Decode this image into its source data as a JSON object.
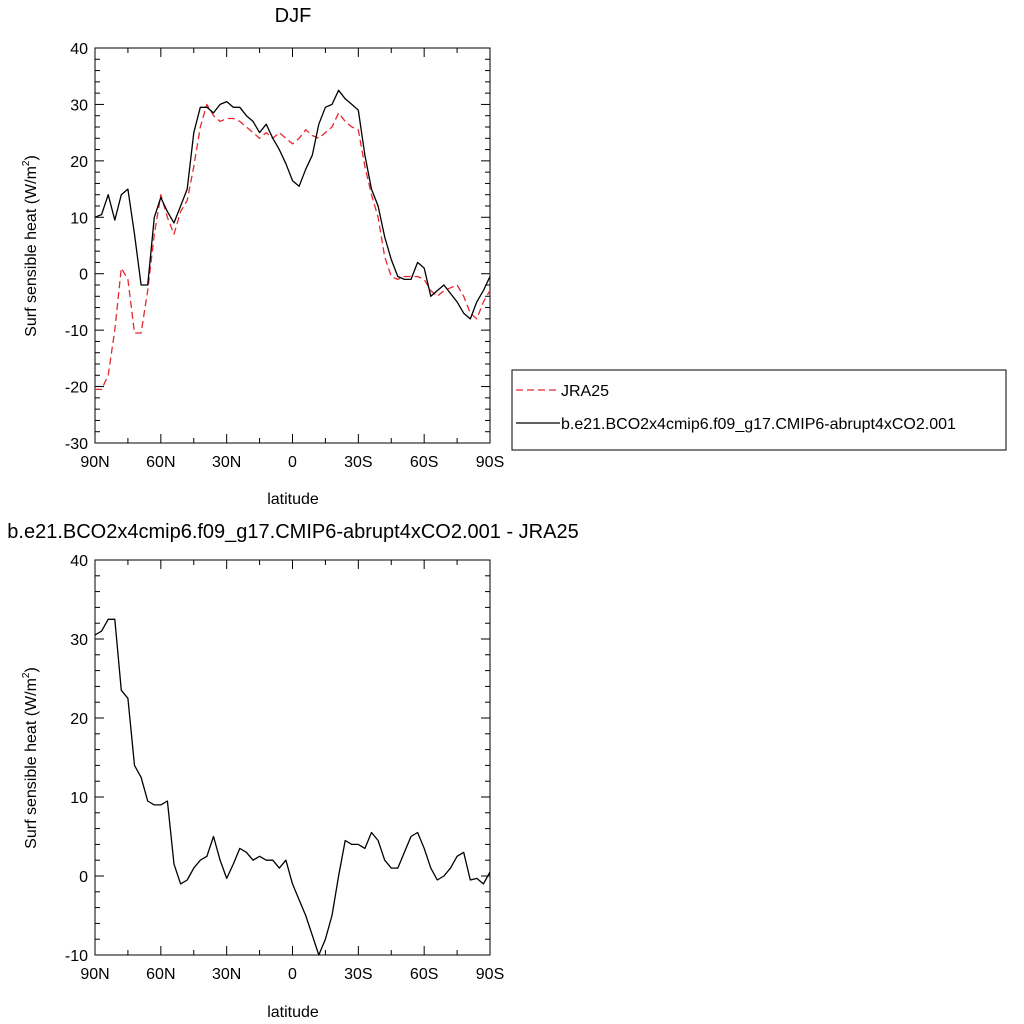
{
  "chart_data": [
    {
      "type": "line",
      "title": "DJF",
      "xlabel": "latitude",
      "ylabel_main": "Surf sensible heat (W/m",
      "ylabel_sup": "2",
      "ylabel_close": ")",
      "xlim": [
        90,
        -90
      ],
      "ylim": [
        -30,
        40
      ],
      "x_ticks": [
        90,
        60,
        30,
        0,
        -30,
        -60,
        -90
      ],
      "x_tick_labels": [
        "90N",
        "60N",
        "30N",
        "0",
        "30S",
        "60S",
        "90S"
      ],
      "y_ticks": [
        -30,
        -20,
        -10,
        0,
        10,
        20,
        30,
        40
      ],
      "y_tick_labels": [
        "-30",
        "-20",
        "-10",
        "0",
        "10",
        "20",
        "30",
        "40"
      ],
      "legend_position": "right",
      "series": [
        {
          "name": "JRA25",
          "color": "#e8262d",
          "style": "dashed",
          "x": [
            90,
            87,
            84,
            81,
            78,
            75,
            72,
            69,
            66,
            63,
            60,
            57,
            54,
            51,
            48,
            45,
            42,
            39,
            36,
            33,
            30,
            27,
            24,
            21,
            18,
            15,
            12,
            9,
            6,
            3,
            0,
            -3,
            -6,
            -9,
            -12,
            -15,
            -18,
            -21,
            -24,
            -27,
            -30,
            -33,
            -36,
            -39,
            -42,
            -45,
            -48,
            -51,
            -54,
            -57,
            -60,
            -63,
            -66,
            -69,
            -72,
            -75,
            -78,
            -81,
            -84,
            -87,
            -90
          ],
          "y": [
            -20.5,
            -20.5,
            -18,
            -10,
            1,
            -1,
            -10.5,
            -10.5,
            -3,
            7,
            14,
            10,
            7,
            11,
            13,
            19,
            26,
            30,
            28,
            27,
            27.5,
            27.5,
            27,
            26,
            25,
            24,
            25,
            24,
            25,
            24,
            23,
            24,
            25.5,
            24.5,
            24,
            25,
            26,
            28.5,
            27,
            26,
            25.5,
            19,
            14,
            10,
            3,
            -0.5,
            -1,
            -0.5,
            -0.5,
            -0.5,
            -1,
            -3,
            -4,
            -3,
            -2.5,
            -2,
            -4,
            -7,
            -8,
            -5,
            -3
          ],
          "x_step_note": ""
        },
        {
          "name": "b.e21.BCO2x4cmip6.f09_g17.CMIP6-abrupt4xCO2.001",
          "color": "#000000",
          "style": "solid",
          "x": [
            90,
            87,
            84,
            81,
            78,
            75,
            72,
            69,
            66,
            63,
            60,
            57,
            54,
            51,
            48,
            45,
            42,
            39,
            36,
            33,
            30,
            27,
            24,
            21,
            18,
            15,
            12,
            9,
            6,
            3,
            0,
            -3,
            -6,
            -9,
            -12,
            -15,
            -18,
            -21,
            -24,
            -27,
            -30,
            -33,
            -36,
            -39,
            -42,
            -45,
            -48,
            -51,
            -54,
            -57,
            -60,
            -63,
            -66,
            -69,
            -72,
            -75,
            -78,
            -81,
            -84,
            -87,
            -90
          ],
          "y": [
            10,
            10.5,
            14,
            9.5,
            14,
            15,
            7,
            -2,
            -2,
            10,
            13.5,
            11,
            9,
            12,
            15,
            25,
            29.5,
            29.5,
            28.5,
            30,
            30.5,
            29.5,
            29.5,
            28,
            27,
            25,
            26.5,
            24,
            22,
            19.5,
            16.5,
            15.5,
            18.5,
            21,
            26.5,
            29.5,
            30,
            32.5,
            31,
            30,
            29,
            21,
            15,
            12,
            6.5,
            2.5,
            -0.5,
            -1,
            -1,
            2,
            1,
            -4,
            -3,
            -2,
            -3.5,
            -5,
            -7,
            -8,
            -5,
            -3,
            -0.5
          ]
        }
      ]
    },
    {
      "type": "line",
      "title": "b.e21.BCO2x4cmip6.f09_g17.CMIP6-abrupt4xCO2.001 - JRA25",
      "xlabel": "latitude",
      "ylabel_main": "Surf sensible heat (W/m",
      "ylabel_sup": "2",
      "ylabel_close": ")",
      "xlim": [
        90,
        -90
      ],
      "ylim": [
        -10,
        40
      ],
      "x_ticks": [
        90,
        60,
        30,
        0,
        -30,
        -60,
        -90
      ],
      "x_tick_labels": [
        "90N",
        "60N",
        "30N",
        "0",
        "30S",
        "60S",
        "90S"
      ],
      "y_ticks": [
        -10,
        0,
        10,
        20,
        30,
        40
      ],
      "y_tick_labels": [
        "-10",
        "0",
        "10",
        "20",
        "30",
        "40"
      ],
      "series": [
        {
          "color": "#000000",
          "style": "solid",
          "x": [
            90,
            87,
            84,
            81,
            78,
            75,
            72,
            69,
            66,
            63,
            60,
            57,
            54,
            51,
            48,
            45,
            42,
            39,
            36,
            33,
            30,
            27,
            24,
            21,
            18,
            15,
            12,
            9,
            6,
            3,
            0,
            -3,
            -6,
            -9,
            -12,
            -15,
            -18,
            -21,
            -24,
            -27,
            -30,
            -33,
            -36,
            -39,
            -42,
            -45,
            -48,
            -51,
            -54,
            -57,
            -60,
            -63,
            -66,
            -69,
            -72,
            -75,
            -78,
            -81,
            -84,
            -87,
            -90
          ],
          "y": [
            30.5,
            31,
            32.5,
            32.5,
            23.5,
            22.5,
            14,
            12.5,
            9.5,
            9,
            9,
            9.5,
            1.5,
            -1,
            -0.5,
            1,
            2,
            2.5,
            5,
            2,
            -0.3,
            1.5,
            3.5,
            3,
            2,
            2.5,
            2,
            2,
            1,
            2,
            -1,
            -3,
            -5,
            -7.5,
            -10,
            -8,
            -5,
            0,
            4.5,
            4,
            4,
            3.5,
            5.5,
            4.5,
            2,
            1,
            1,
            3,
            5,
            5.5,
            3.5,
            1,
            -0.5,
            0,
            1,
            2.5,
            3,
            -0.5,
            -0.3,
            -1,
            0.5
          ]
        }
      ]
    }
  ]
}
